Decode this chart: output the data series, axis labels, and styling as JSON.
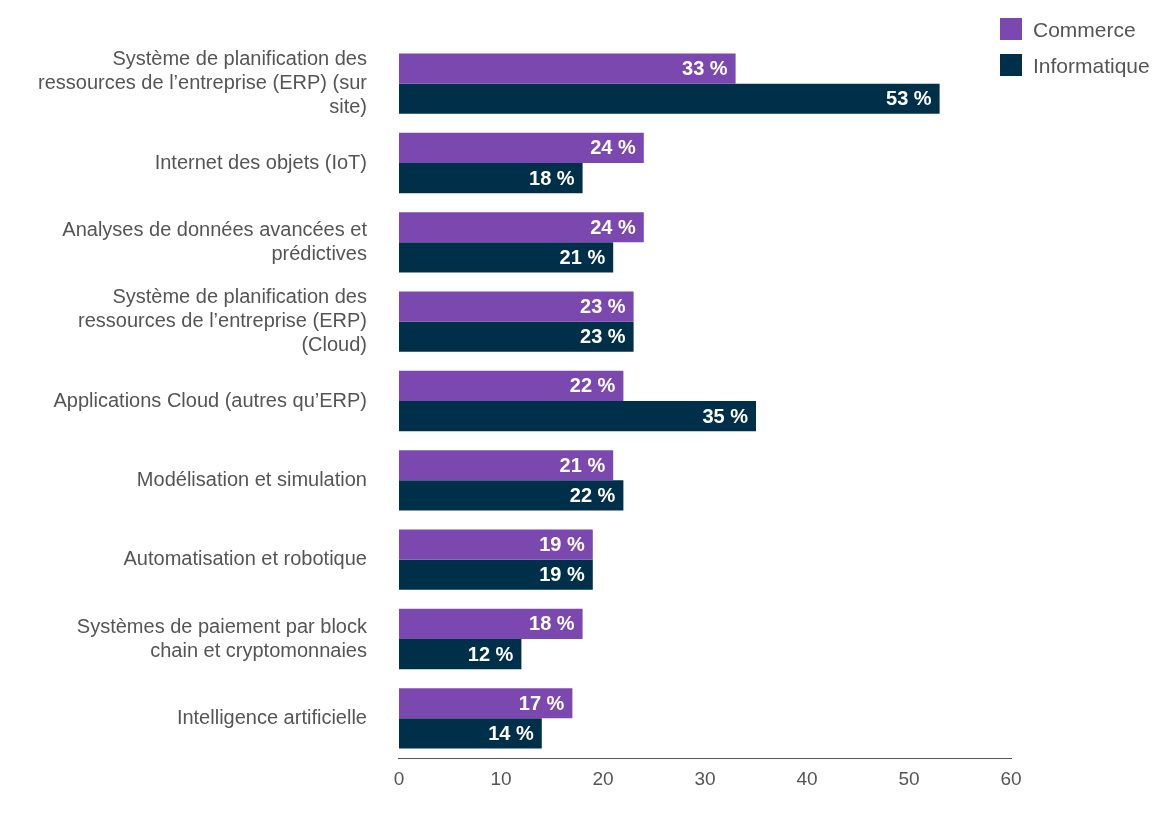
{
  "chart_data": {
    "type": "bar",
    "orientation": "horizontal",
    "categories": [
      "Système de planification des ressources de l’entreprise (ERP) (sur site)",
      "Internet des objets (IoT)",
      "Analyses de données avancées et prédictives",
      "Système de planification des ressources de l’entreprise (ERP) (Cloud)",
      "Applications Cloud (autres qu’ERP)",
      "Modélisation et simulation",
      "Automatisation et robotique",
      "Systèmes de paiement par block chain et cryptomonnaies",
      "Intelligence artificielle"
    ],
    "series": [
      {
        "name": "Commerce",
        "color": "#7b48b0",
        "values": [
          33,
          24,
          24,
          23,
          22,
          21,
          19,
          18,
          17
        ],
        "value_labels": [
          "33 %",
          "24 %",
          "24 %",
          "23 %",
          "22 %",
          "21 %",
          "19 %",
          "18 %",
          "17 %"
        ]
      },
      {
        "name": "Informatique",
        "color": "#003049",
        "values": [
          53,
          18,
          21,
          23,
          35,
          22,
          19,
          12,
          14
        ],
        "value_labels": [
          "53 %",
          "18 %",
          "21 %",
          "23 %",
          "35 %",
          "22 %",
          "19 %",
          "12 %",
          "14 %"
        ]
      }
    ],
    "xlim": [
      0,
      60
    ],
    "xticks": [
      0,
      10,
      20,
      30,
      40,
      50,
      60
    ],
    "grid": false,
    "legend": "top right"
  }
}
